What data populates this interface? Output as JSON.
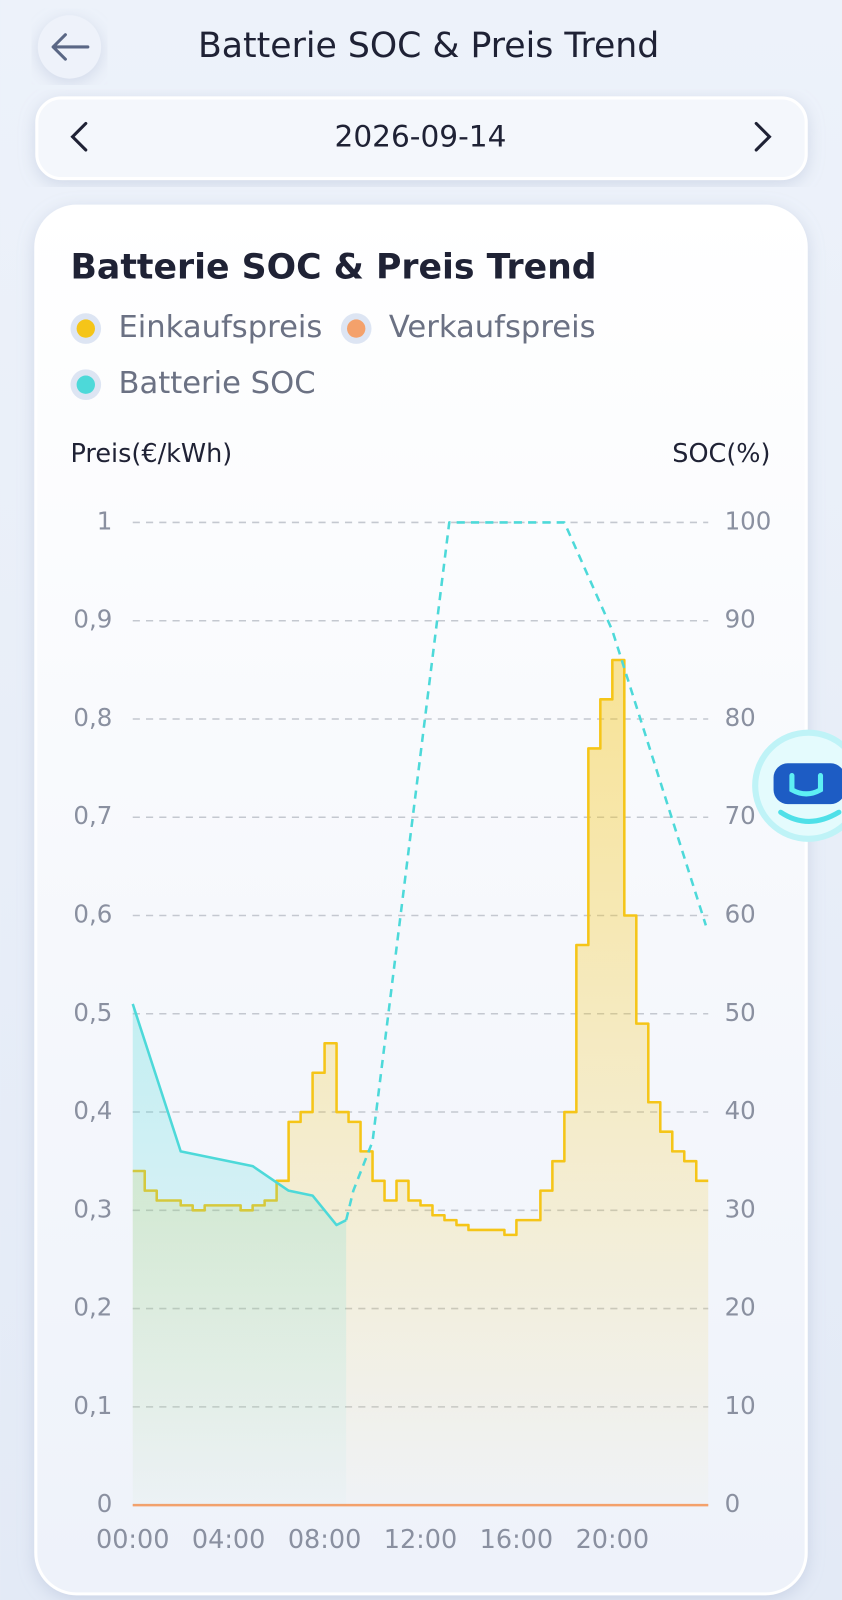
{
  "header": {
    "title": "Batterie SOC & Preis Trend"
  },
  "date": "2026-09-14",
  "chart_data": {
    "type": "line",
    "title": "Batterie SOC & Preis Trend",
    "y_axis_label": "Preis(€/kWh)",
    "y2_axis_label": "SOC(%)",
    "xlim": [
      0,
      24
    ],
    "xticks": [
      {
        "value": 0,
        "label": "00:00"
      },
      {
        "value": 4,
        "label": "04:00"
      },
      {
        "value": 8,
        "label": "08:00"
      },
      {
        "value": 12,
        "label": "12:00"
      },
      {
        "value": 16,
        "label": "16:00"
      },
      {
        "value": 20,
        "label": "20:00"
      }
    ],
    "ylim": [
      0,
      1
    ],
    "yticks": [
      0,
      {
        "value": 0.1,
        "label": "0,1"
      },
      {
        "value": 0.2,
        "label": "0,2"
      },
      {
        "value": 0.3,
        "label": "0,3"
      },
      {
        "value": 0.4,
        "label": "0,4"
      },
      {
        "value": 0.5,
        "label": "0,5"
      },
      {
        "value": 0.6,
        "label": "0,6"
      },
      {
        "value": 0.7,
        "label": "0,7"
      },
      {
        "value": 0.8,
        "label": "0,8"
      },
      {
        "value": 0.9,
        "label": "0,9"
      },
      1
    ],
    "y2lim": [
      0,
      100
    ],
    "y2ticks": [
      0,
      10,
      20,
      30,
      40,
      50,
      60,
      70,
      80,
      90,
      100
    ],
    "grid": true,
    "series": [
      {
        "name": "Einkaufspreis",
        "color": "#f5c518",
        "style": "step",
        "area": true,
        "x": [
          0,
          0.5,
          1,
          1.5,
          2,
          2.5,
          3,
          3.5,
          4,
          4.5,
          5,
          5.5,
          6,
          6.5,
          7,
          7.5,
          8,
          8.5,
          9,
          9.5,
          10,
          10.5,
          11,
          11.5,
          12,
          12.5,
          13,
          13.5,
          14,
          14.5,
          15,
          15.5,
          16,
          16.5,
          17,
          17.5,
          18,
          18.5,
          19,
          19.5,
          20,
          20.5,
          21,
          21.5,
          22,
          22.5,
          23,
          23.5
        ],
        "values": [
          0.34,
          0.32,
          0.31,
          0.31,
          0.305,
          0.3,
          0.305,
          0.305,
          0.305,
          0.3,
          0.305,
          0.31,
          0.33,
          0.39,
          0.4,
          0.44,
          0.47,
          0.4,
          0.39,
          0.36,
          0.33,
          0.31,
          0.33,
          0.31,
          0.305,
          0.295,
          0.29,
          0.285,
          0.28,
          0.28,
          0.28,
          0.275,
          0.29,
          0.29,
          0.32,
          0.35,
          0.4,
          0.57,
          0.77,
          0.82,
          0.86,
          0.6,
          0.49,
          0.41,
          0.38,
          0.36,
          0.35,
          0.33
        ]
      },
      {
        "name": "Verkaufspreis",
        "color": "#f4a16b",
        "style": "step",
        "area": false,
        "x": [
          0,
          23.5
        ],
        "values": [
          0,
          0
        ]
      },
      {
        "name": "Batterie SOC",
        "color": "#4dd9d9",
        "style": "line",
        "axis": "y2",
        "area": true,
        "dashed_from": 8.9,
        "x": [
          0,
          2,
          5,
          6.5,
          7.5,
          8.5,
          8.9,
          9.2,
          10,
          13.2,
          18,
          20,
          23.9
        ],
        "values": [
          51,
          36,
          34.5,
          32,
          31.5,
          28.5,
          29,
          32,
          37,
          100,
          100,
          89,
          59
        ]
      }
    ]
  }
}
